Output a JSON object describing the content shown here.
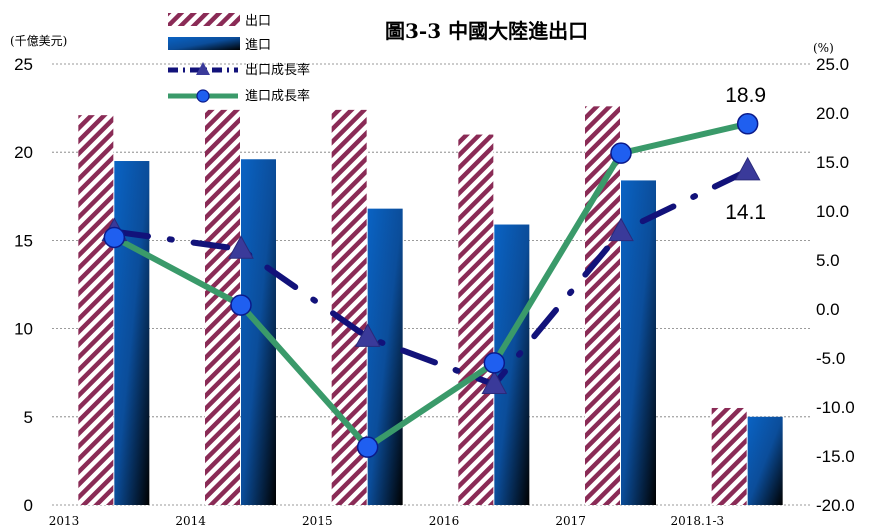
{
  "chart_data": {
    "type": "bar",
    "title": "圖3-3 中國大陸進出口",
    "left_unit": "(千億美元)",
    "right_unit": "(%)",
    "categories": [
      "2013",
      "2014",
      "2015",
      "2016",
      "2017",
      "2018.1-3"
    ],
    "y_left": {
      "min": 0,
      "max": 25,
      "ticks": [
        "0",
        "5",
        "10",
        "15",
        "20",
        "25"
      ]
    },
    "y_right": {
      "min": -20,
      "max": 25,
      "ticks": [
        "-20.0",
        "-15.0",
        "-10.0",
        "-5.0",
        "0.0",
        "5.0",
        "10.0",
        "15.0",
        "20.0",
        "25.0"
      ]
    },
    "grid": true,
    "legend_position": "top-left",
    "series": [
      {
        "name": "出口",
        "type": "bar",
        "axis": "left",
        "values": [
          22.1,
          22.4,
          22.4,
          21.0,
          22.6,
          5.5
        ],
        "color": "#8a2b56"
      },
      {
        "name": "進口",
        "type": "bar",
        "axis": "left",
        "values": [
          19.5,
          19.6,
          16.8,
          15.9,
          18.4,
          5.0
        ],
        "color": "#0a5fb0"
      },
      {
        "name": "出口成長率",
        "type": "line",
        "axis": "right",
        "values": [
          7.9,
          6.1,
          -2.9,
          -7.7,
          7.9,
          14.1
        ],
        "color": "#12127a"
      },
      {
        "name": "進口成長率",
        "type": "line",
        "axis": "right",
        "values": [
          7.3,
          0.4,
          -14.1,
          -5.5,
          15.9,
          18.9
        ],
        "color": "#3a9a6a"
      }
    ],
    "data_labels": [
      {
        "series": "進口成長率",
        "category": "2018.1-3",
        "text": "18.9"
      },
      {
        "series": "出口成長率",
        "category": "2018.1-3",
        "text": "14.1"
      }
    ]
  }
}
